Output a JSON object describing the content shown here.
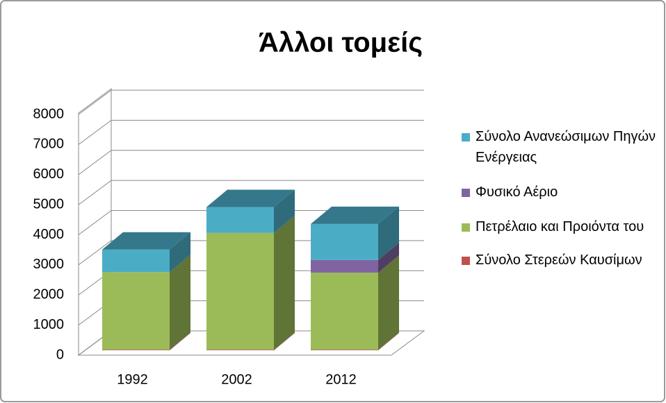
{
  "chart_data": {
    "type": "bar3d_stacked",
    "title": "Άλλοι τομείς",
    "categories": [
      "1992",
      "2002",
      "2012"
    ],
    "series": [
      {
        "name": "Σύνολο Στερεών Καυσίμων",
        "color": "#c0504d",
        "values": [
          20,
          20,
          20
        ]
      },
      {
        "name": "Πετρέλαιο και Προιόντα του",
        "color": "#9bbb59",
        "values": [
          2580,
          3880,
          2560
        ]
      },
      {
        "name": "Φυσικό Αέριο",
        "color": "#8064a2",
        "values": [
          0,
          0,
          420
        ]
      },
      {
        "name": "Σύνολο Ανανεώσιμων Πηγών Ενέργειας",
        "color": "#4bacc6",
        "values": [
          750,
          860,
          1200
        ]
      }
    ],
    "ylim": [
      0,
      8000
    ],
    "yticks": [
      0,
      1000,
      2000,
      3000,
      4000,
      5000,
      6000,
      7000,
      8000
    ],
    "grid": true
  }
}
